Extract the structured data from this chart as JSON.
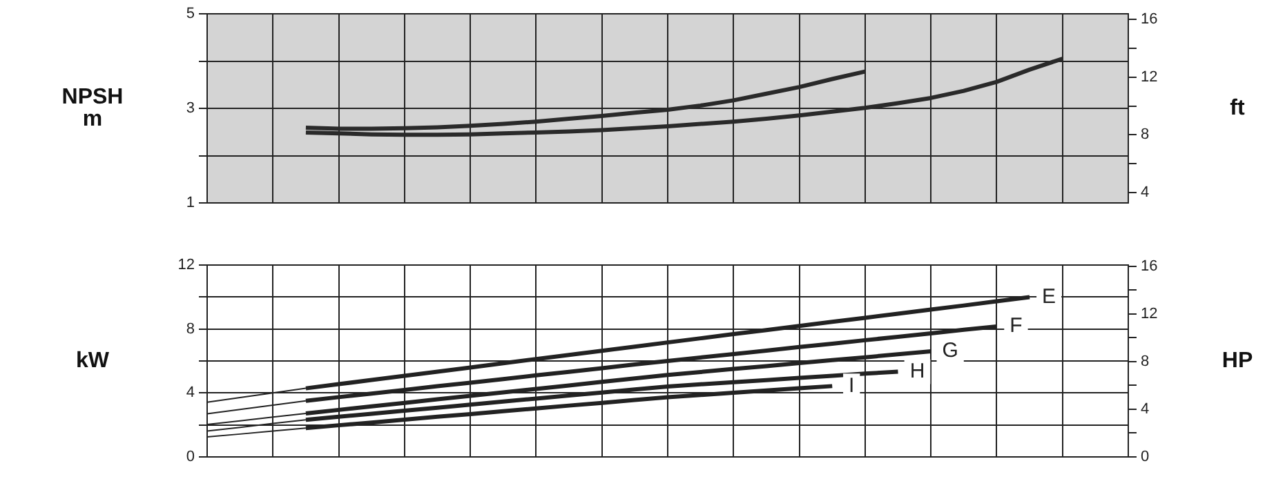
{
  "chart_data": [
    {
      "type": "line",
      "ylabel": "NPSH\nm",
      "y2label": "ft",
      "categories": [
        null,
        null,
        null,
        null,
        null,
        null,
        null,
        null,
        null,
        null,
        null,
        null,
        null,
        null,
        null,
        null,
        null,
        null,
        null,
        null,
        null,
        null,
        null,
        null,
        null,
        null,
        null,
        null,
        null
      ],
      "ylim": [
        1,
        5
      ],
      "yticks": [
        1,
        {
          "value": 2,
          "label": null
        },
        3,
        {
          "value": 4,
          "label": null
        },
        5
      ],
      "y2lim": [
        3.28,
        16.4
      ],
      "y2ticks": [
        4,
        {
          "value": 6,
          "label": null
        },
        8,
        {
          "value": 10,
          "label": null
        },
        12,
        {
          "value": 14,
          "label": null
        },
        16
      ],
      "tick_labels": "y",
      "grid": true,
      "legend": false,
      "marker": "none",
      "line_style": "solid",
      "series": [
        {
          "color": "#2a2a2a",
          "values": [
            null,
            null,
            null,
            2.59,
            2.57,
            2.57,
            2.58,
            2.6,
            2.63,
            2.67,
            2.72,
            2.78,
            2.84,
            2.91,
            2.97,
            3.06,
            3.17,
            3.31,
            3.45,
            3.62,
            3.78,
            null,
            null,
            null,
            null,
            null,
            null,
            null,
            null
          ]
        },
        {
          "color": "#2a2a2a",
          "values": [
            null,
            null,
            null,
            2.49,
            2.47,
            2.45,
            2.44,
            2.44,
            2.45,
            2.47,
            2.49,
            2.51,
            2.54,
            2.58,
            2.62,
            2.67,
            2.72,
            2.78,
            2.85,
            2.93,
            3.01,
            3.11,
            3.22,
            3.37,
            3.56,
            3.82,
            4.05,
            null,
            null
          ]
        }
      ]
    },
    {
      "type": "line",
      "ylabel": "kW",
      "y2label": "HP",
      "categories": [
        null,
        null,
        null,
        null,
        null,
        null,
        null,
        null,
        null,
        null,
        null,
        null,
        null,
        null,
        null,
        null,
        null,
        null,
        null,
        null,
        null,
        null,
        null,
        null,
        null,
        null,
        null,
        null,
        null
      ],
      "ylim": [
        0,
        12
      ],
      "yticks": [
        0,
        {
          "value": 2,
          "label": null
        },
        4,
        {
          "value": 6,
          "label": null
        },
        8,
        {
          "value": 10,
          "label": null
        },
        12
      ],
      "y2lim": [
        0,
        16.09
      ],
      "y2ticks": [
        0,
        {
          "value": 2,
          "label": null
        },
        4,
        {
          "value": 6,
          "label": null
        },
        8,
        {
          "value": 10,
          "label": null
        },
        12,
        {
          "value": 14,
          "label": null
        },
        16
      ],
      "tick_labels": "y",
      "grid": true,
      "legend": false,
      "marker": "none",
      "line_style": "solid",
      "series": [
        {
          "name": "E",
          "color": "#222222",
          "values": [
            3.42,
            3.71,
            4.0,
            4.29,
            4.55,
            4.81,
            5.07,
            5.33,
            5.59,
            5.86,
            6.12,
            6.38,
            6.64,
            6.9,
            7.16,
            7.42,
            7.68,
            7.93,
            8.19,
            8.45,
            8.7,
            8.96,
            9.22,
            9.47,
            9.73,
            9.99,
            null,
            null,
            null
          ]
        },
        {
          "name": "F",
          "color": "#222222",
          "values": [
            2.7,
            2.97,
            3.24,
            3.51,
            3.74,
            3.96,
            4.19,
            4.42,
            4.64,
            4.87,
            5.1,
            5.32,
            5.55,
            5.78,
            6.0,
            6.22,
            6.43,
            6.65,
            6.87,
            7.08,
            7.3,
            7.51,
            7.73,
            7.95,
            8.16,
            null,
            null,
            null,
            null
          ]
        },
        {
          "name": "G",
          "color": "#222222",
          "values": [
            2.03,
            2.26,
            2.49,
            2.72,
            2.94,
            3.16,
            3.38,
            3.6,
            3.82,
            4.04,
            4.25,
            4.47,
            4.69,
            4.91,
            5.13,
            5.31,
            5.5,
            5.68,
            5.87,
            6.05,
            6.23,
            6.42,
            6.6,
            null,
            null,
            null,
            null,
            null,
            null
          ]
        },
        {
          "name": "H",
          "color": "#222222",
          "values": [
            1.62,
            1.85,
            2.09,
            2.32,
            2.51,
            2.7,
            2.89,
            3.08,
            3.27,
            3.46,
            3.65,
            3.84,
            4.03,
            4.22,
            4.4,
            4.54,
            4.67,
            4.8,
            4.94,
            5.07,
            5.21,
            5.33,
            null,
            null,
            null,
            null,
            null,
            null,
            null
          ]
        },
        {
          "name": "I",
          "color": "#222222",
          "values": [
            1.25,
            1.43,
            1.62,
            1.8,
            1.98,
            2.15,
            2.33,
            2.51,
            2.68,
            2.86,
            3.03,
            3.21,
            3.38,
            3.56,
            3.73,
            3.87,
            4.01,
            4.15,
            4.29,
            4.43,
            null,
            null,
            null,
            null,
            null,
            null,
            null,
            null,
            null
          ]
        }
      ]
    }
  ]
}
